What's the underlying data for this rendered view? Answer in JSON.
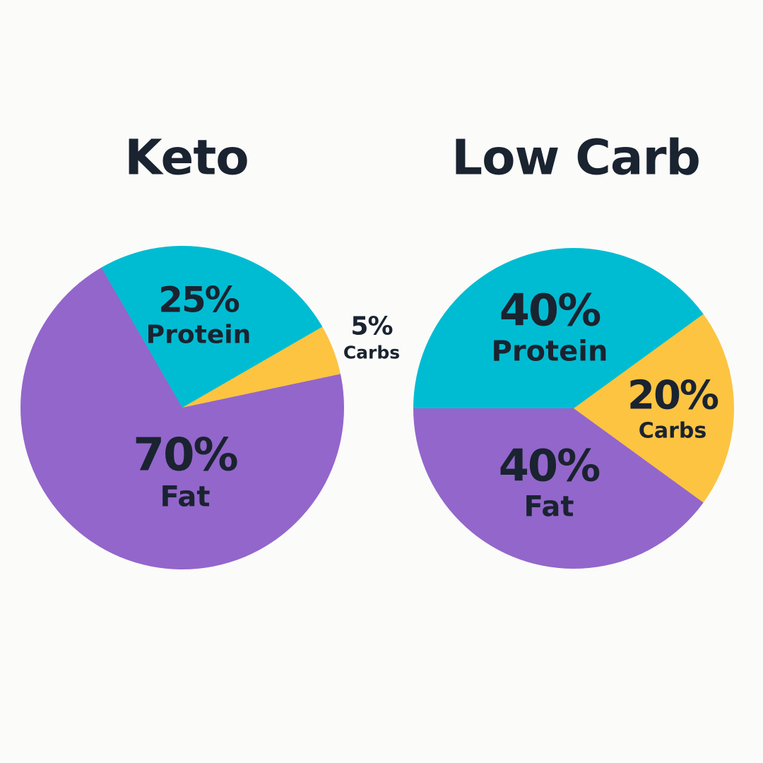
{
  "page": {
    "background": "#fbfbfa",
    "text_color": "#1a2330"
  },
  "chart_data": [
    {
      "type": "pie",
      "title": "Keto",
      "legend": "none",
      "start_angle_deg": -30,
      "slices": [
        {
          "name": "Protein",
          "pct": 25,
          "value_label": "25%",
          "color": "#00bcd2",
          "label_position": "inside"
        },
        {
          "name": "Carbs",
          "pct": 5,
          "value_label": "5%",
          "color": "#fcc441",
          "label_position": "outside-right"
        },
        {
          "name": "Fat",
          "pct": 70,
          "value_label": "70%",
          "color": "#9366cb",
          "label_position": "inside"
        }
      ]
    },
    {
      "type": "pie",
      "title": "Low Carb",
      "legend": "none",
      "start_angle_deg": -90,
      "slices": [
        {
          "name": "Protein",
          "pct": 40,
          "value_label": "40%",
          "color": "#00bcd2",
          "label_position": "inside"
        },
        {
          "name": "Carbs",
          "pct": 20,
          "value_label": "20%",
          "color": "#fcc441",
          "label_position": "inside"
        },
        {
          "name": "Fat",
          "pct": 40,
          "value_label": "40%",
          "color": "#9366cb",
          "label_position": "inside"
        }
      ]
    }
  ]
}
